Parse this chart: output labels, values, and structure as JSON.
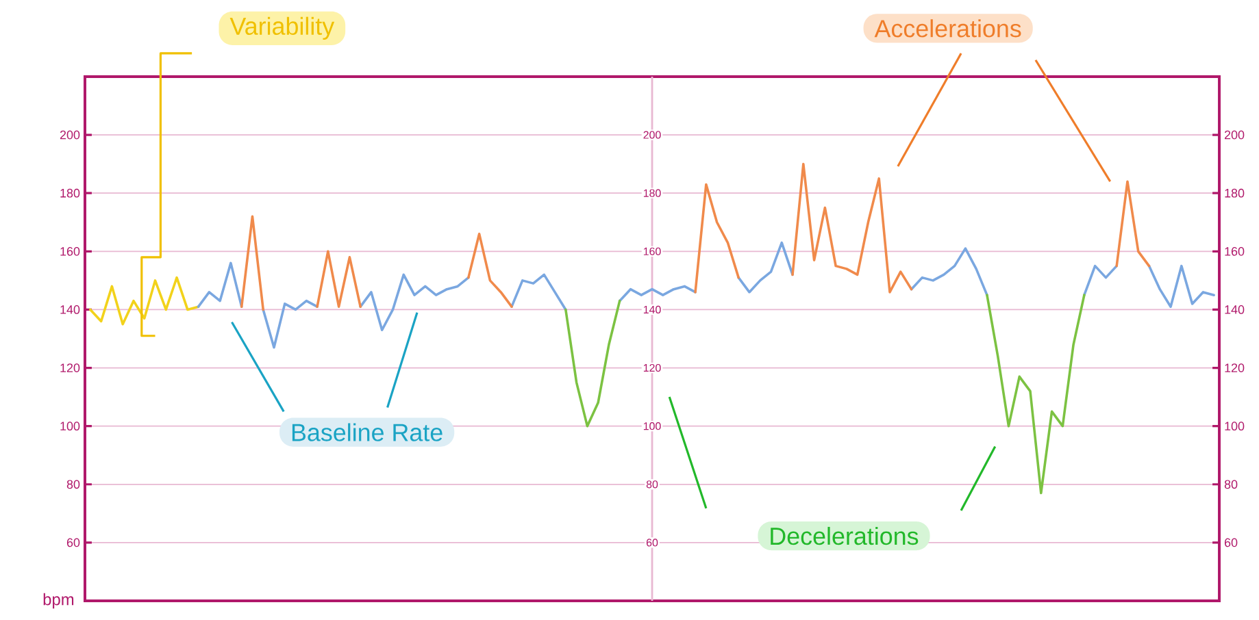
{
  "chart_data": {
    "type": "line",
    "categories": [
      null,
      null,
      null,
      null,
      null,
      null,
      null,
      null,
      null,
      null,
      null,
      null,
      null,
      null,
      null,
      null,
      null,
      null,
      null,
      null,
      null,
      null,
      null,
      null,
      null,
      null,
      null,
      null,
      null,
      null,
      null,
      null,
      null,
      null,
      null,
      null,
      null,
      null,
      null,
      null,
      null,
      null,
      null,
      null,
      null,
      null,
      null,
      null,
      null,
      null,
      null,
      null,
      null,
      null,
      null,
      null,
      null,
      null,
      null,
      null,
      null,
      null,
      null,
      null,
      null,
      null,
      null,
      null,
      null,
      null,
      null,
      null,
      null,
      null,
      null,
      null,
      null,
      null,
      null,
      null,
      null,
      null,
      null,
      null,
      null,
      null,
      null,
      null,
      null,
      null,
      null,
      null,
      null,
      null,
      null,
      null,
      null,
      null,
      null,
      null,
      null,
      null,
      null,
      null,
      null
    ],
    "series": [
      {
        "color": "#f2d21b",
        "values": [
          140,
          136,
          148,
          135,
          143,
          137,
          150,
          140,
          151,
          140,
          141,
          null,
          null,
          null,
          null,
          null,
          null,
          null,
          null,
          null,
          null,
          null,
          null,
          null,
          null,
          null,
          null,
          null,
          null,
          null,
          null,
          null,
          null,
          null,
          null,
          null,
          null,
          null,
          null,
          null,
          null,
          null,
          null,
          null,
          null,
          null,
          null,
          null,
          null,
          null,
          null,
          null,
          null,
          null,
          null,
          null,
          null,
          null,
          null,
          null,
          null,
          null,
          null,
          null,
          null,
          null,
          null,
          null,
          null,
          null,
          null,
          null,
          null,
          null,
          null,
          null,
          null,
          null,
          null,
          null,
          null,
          null,
          null,
          null,
          null,
          null,
          null,
          null,
          null,
          null,
          null,
          null,
          null,
          null,
          null,
          null,
          null,
          null,
          null,
          null,
          null,
          null,
          null,
          null,
          null
        ]
      },
      {
        "color": "#7aa7e0",
        "values": [
          null,
          null,
          null,
          null,
          null,
          null,
          null,
          null,
          null,
          null,
          141,
          146,
          143,
          156,
          141,
          null,
          140,
          127,
          142,
          140,
          143,
          141,
          null,
          null,
          null,
          141,
          146,
          133,
          140,
          152,
          145,
          148,
          145,
          147,
          148,
          151,
          null,
          null,
          null,
          141,
          150,
          149,
          152,
          146,
          140,
          null,
          null,
          null,
          null,
          143,
          147,
          145,
          147,
          145,
          147,
          148,
          146,
          null,
          null,
          null,
          151,
          146,
          150,
          153,
          163,
          152,
          null,
          null,
          null,
          null,
          null,
          null,
          null,
          null,
          null,
          null,
          147,
          151,
          150,
          152,
          155,
          161,
          154,
          145,
          null,
          null,
          null,
          null,
          null,
          null,
          null,
          null,
          145,
          155,
          151,
          155,
          null,
          null,
          155,
          147,
          141,
          155,
          142,
          146,
          145
        ]
      },
      {
        "color": "#f08a4b",
        "values": [
          null,
          null,
          null,
          null,
          null,
          null,
          null,
          null,
          null,
          null,
          null,
          null,
          null,
          null,
          141,
          172,
          140,
          null,
          null,
          null,
          null,
          141,
          160,
          141,
          158,
          141,
          null,
          null,
          null,
          null,
          null,
          null,
          null,
          null,
          null,
          151,
          166,
          150,
          146,
          141,
          null,
          null,
          null,
          null,
          null,
          null,
          null,
          null,
          null,
          null,
          null,
          null,
          null,
          null,
          null,
          null,
          146,
          183,
          170,
          163,
          151,
          null,
          null,
          null,
          null,
          152,
          190,
          157,
          175,
          155,
          154,
          152,
          170,
          185,
          146,
          153,
          147,
          null,
          null,
          null,
          null,
          null,
          null,
          null,
          null,
          null,
          null,
          null,
          null,
          null,
          null,
          null,
          null,
          null,
          null,
          155,
          184,
          160,
          155,
          null,
          null,
          null,
          null,
          null,
          null
        ]
      },
      {
        "color": "#7cc242",
        "values": [
          null,
          null,
          null,
          null,
          null,
          null,
          null,
          null,
          null,
          null,
          null,
          null,
          null,
          null,
          null,
          null,
          null,
          null,
          null,
          null,
          null,
          null,
          null,
          null,
          null,
          null,
          null,
          null,
          null,
          null,
          null,
          null,
          null,
          null,
          null,
          null,
          null,
          null,
          null,
          null,
          null,
          null,
          null,
          null,
          140,
          115,
          100,
          108,
          128,
          143,
          null,
          null,
          null,
          null,
          null,
          null,
          null,
          null,
          null,
          null,
          null,
          null,
          null,
          null,
          null,
          null,
          null,
          null,
          null,
          null,
          null,
          null,
          null,
          null,
          null,
          null,
          null,
          null,
          null,
          null,
          null,
          null,
          null,
          145,
          124,
          100,
          117,
          112,
          77,
          105,
          100,
          128,
          145,
          null,
          null,
          null,
          null,
          null,
          null,
          null,
          null,
          null,
          null,
          null,
          null
        ]
      }
    ],
    "ylim": [
      40,
      220
    ],
    "yticks": [
      60,
      80,
      100,
      120,
      140,
      160,
      180,
      200
    ],
    "y2lim": [
      40,
      220
    ],
    "y2ticks": [
      60,
      80,
      100,
      120,
      140,
      160,
      180,
      200
    ],
    "y3lim": [
      40,
      220
    ],
    "y3ticks": [
      60,
      80,
      100,
      120,
      140,
      160,
      180,
      200
    ],
    "ylabel": "bpm",
    "grid": "y",
    "annotations": [
      "Variability",
      "Accelerations",
      "Baseline Rate",
      "Decelerations"
    ]
  }
}
